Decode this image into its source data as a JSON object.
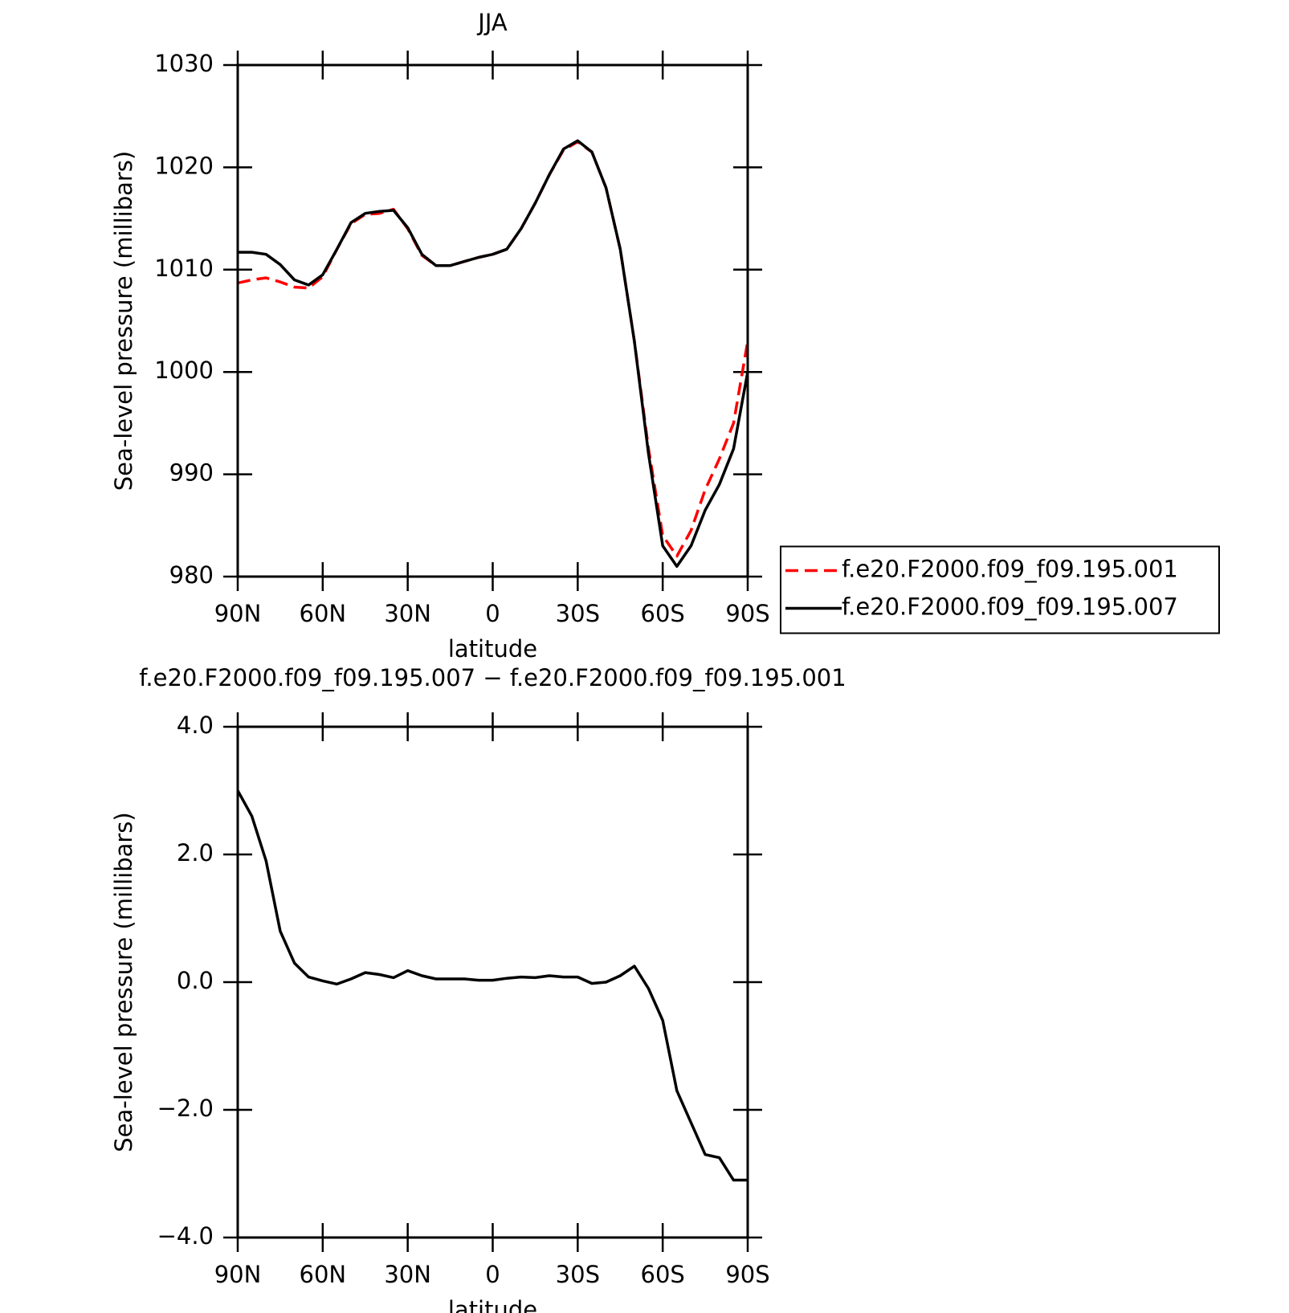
{
  "chart_data": [
    {
      "type": "line",
      "title": "JJA",
      "xlabel": "latitude",
      "ylabel": "Sea-level pressure (millibars)",
      "x": [
        90,
        85,
        80,
        75,
        70,
        65,
        60,
        55,
        50,
        45,
        40,
        35,
        30,
        25,
        20,
        15,
        10,
        5,
        0,
        -5,
        -10,
        -15,
        -20,
        -25,
        -30,
        -35,
        -40,
        -45,
        -50,
        -55,
        -60,
        -65,
        -70,
        -75,
        -80,
        -85,
        -90
      ],
      "series": [
        {
          "name": "f.e20.F2000.f09_f09.195.001",
          "color": "#ff0000",
          "line_style": "dashed",
          "values": [
            1008.7,
            1009.0,
            1009.2,
            1008.8,
            1008.3,
            1008.2,
            1009.3,
            1012.0,
            1014.5,
            1015.4,
            1015.5,
            1015.9,
            1014.0,
            1011.4,
            1010.4,
            1010.4,
            1010.8,
            1011.2,
            1011.5,
            1012.0,
            1014.0,
            1016.5,
            1019.3,
            1021.7,
            1022.5,
            1021.5,
            1018.0,
            1012.0,
            1003.0,
            992.5,
            984.0,
            982.0,
            984.5,
            988.5,
            991.5,
            995.0,
            1003.0
          ]
        },
        {
          "name": "f.e20.F2000.f09_f09.195.007",
          "color": "#000000",
          "line_style": "solid",
          "values": [
            1011.7,
            1011.7,
            1011.5,
            1010.5,
            1009.0,
            1008.5,
            1009.5,
            1012.0,
            1014.6,
            1015.5,
            1015.7,
            1015.8,
            1014.1,
            1011.5,
            1010.4,
            1010.4,
            1010.8,
            1011.2,
            1011.5,
            1012.0,
            1014.0,
            1016.5,
            1019.3,
            1021.8,
            1022.6,
            1021.5,
            1018.0,
            1012.0,
            1003.0,
            992.0,
            983.0,
            981.0,
            983.0,
            986.5,
            989.0,
            992.5,
            1000.0
          ]
        }
      ],
      "xlim": [
        90,
        -90
      ],
      "xticks": [
        {
          "value": 90,
          "label": "90N"
        },
        {
          "value": 60,
          "label": "60N"
        },
        {
          "value": 30,
          "label": "30N"
        },
        0,
        {
          "value": -30,
          "label": "30S"
        },
        {
          "value": -60,
          "label": "60S"
        },
        {
          "value": -90,
          "label": "90S"
        }
      ],
      "ylim": [
        980,
        1030
      ],
      "yticks": [
        980,
        990,
        1000,
        1010,
        1020,
        1030
      ],
      "legend": "right"
    },
    {
      "type": "line",
      "title": "f.e20.F2000.f09_f09.195.007 − f.e20.F2000.f09_f09.195.001",
      "xlabel": "latitude",
      "ylabel": "Sea-level pressure (millibars)",
      "x": [
        90,
        85,
        80,
        75,
        70,
        65,
        60,
        55,
        50,
        45,
        40,
        35,
        30,
        25,
        20,
        15,
        10,
        5,
        0,
        -5,
        -10,
        -15,
        -20,
        -25,
        -30,
        -35,
        -40,
        -45,
        -50,
        -55,
        -60,
        -65,
        -70,
        -75,
        -80,
        -85,
        -90
      ],
      "series": [
        {
          "color": "#000000",
          "line_style": "solid",
          "values": [
            3.0,
            2.6,
            1.9,
            0.8,
            0.3,
            0.08,
            0.02,
            -0.03,
            0.05,
            0.15,
            0.12,
            0.07,
            0.18,
            0.1,
            0.05,
            0.05,
            0.05,
            0.03,
            0.03,
            0.06,
            0.08,
            0.07,
            0.1,
            0.08,
            0.08,
            -0.02,
            0.0,
            0.1,
            0.25,
            -0.1,
            -0.6,
            -1.7,
            -2.2,
            -2.7,
            -2.75,
            -3.1,
            -3.1
          ]
        }
      ],
      "xlim": [
        90,
        -90
      ],
      "xticks": [
        {
          "value": 90,
          "label": "90N"
        },
        {
          "value": 60,
          "label": "60N"
        },
        {
          "value": 30,
          "label": "30N"
        },
        0,
        {
          "value": -30,
          "label": "30S"
        },
        {
          "value": -60,
          "label": "60S"
        },
        {
          "value": -90,
          "label": "90S"
        }
      ],
      "ylim": [
        -4,
        4
      ],
      "yticks": [
        {
          "value": -4,
          "label": "−4.0"
        },
        {
          "value": -2,
          "label": "−2.0"
        },
        {
          "value": 0,
          "label": "0.0"
        },
        {
          "value": 2,
          "label": "2.0"
        },
        {
          "value": 4,
          "label": "4.0"
        }
      ]
    }
  ]
}
